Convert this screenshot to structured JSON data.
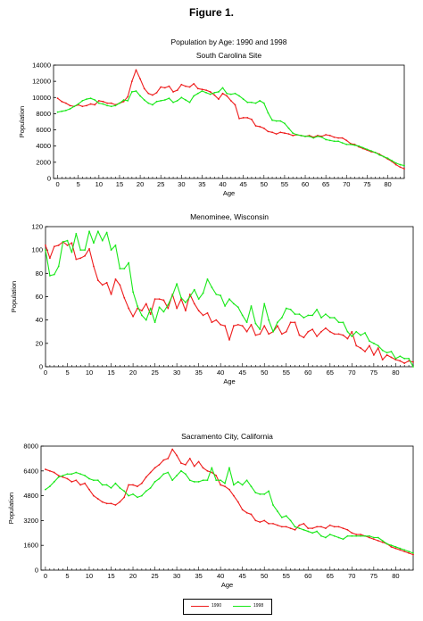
{
  "figure_title": "Figure 1.",
  "colors": {
    "series_1990": "#ee1c1c",
    "series_1998": "#18e818",
    "axis": "#000000"
  },
  "legend": {
    "placement": "bottom-center",
    "labels": [
      "1990",
      "1998"
    ]
  },
  "chart_data": [
    {
      "type": "line",
      "title": "Population by  Age:  1990 and 1998",
      "subtitle": "South Carolina Site",
      "xlabel": "Age",
      "ylabel": "Population",
      "xlim": [
        -1,
        84
      ],
      "ylim": [
        0,
        14000
      ],
      "xticks": [
        0,
        5,
        10,
        15,
        20,
        25,
        30,
        35,
        40,
        45,
        50,
        55,
        60,
        65,
        70,
        75,
        80
      ],
      "yticks": [
        0,
        2000,
        4000,
        6000,
        8000,
        10000,
        12000,
        14000
      ],
      "grid": false,
      "series": [
        {
          "name": "1990",
          "color": "#ee1c1c",
          "values": [
            9900,
            9500,
            9300,
            9000,
            8900,
            9100,
            8900,
            9000,
            9200,
            9100,
            9600,
            9500,
            9300,
            9300,
            9100,
            9300,
            9500,
            10100,
            12000,
            13400,
            12300,
            11100,
            10500,
            10300,
            10600,
            11300,
            11200,
            11400,
            10700,
            10900,
            11600,
            11400,
            11300,
            11700,
            11100,
            11000,
            10900,
            10700,
            10300,
            9800,
            10500,
            10200,
            9600,
            9100,
            7400,
            7500,
            7500,
            7300,
            6500,
            6400,
            6200,
            5800,
            5700,
            5500,
            5700,
            5600,
            5500,
            5300,
            5400,
            5300,
            5200,
            5300,
            5100,
            5300,
            5200,
            5400,
            5300,
            5100,
            5000,
            5000,
            4700,
            4300,
            4200,
            3900,
            3700,
            3500,
            3300,
            3200,
            3000,
            2700,
            2400,
            2100,
            1700,
            1400,
            1200
          ]
        },
        {
          "name": "1998",
          "color": "#18e818",
          "values": [
            8200,
            8300,
            8400,
            8600,
            8900,
            9200,
            9600,
            9800,
            9900,
            9700,
            9300,
            9200,
            9000,
            8900,
            9000,
            9300,
            9700,
            9600,
            10700,
            10800,
            10200,
            9700,
            9300,
            9100,
            9500,
            9600,
            9700,
            9900,
            9400,
            9600,
            10000,
            9700,
            9400,
            10200,
            10500,
            10800,
            10600,
            10400,
            10600,
            10700,
            11200,
            10500,
            10400,
            10500,
            10200,
            9800,
            9400,
            9400,
            9300,
            9600,
            9300,
            8100,
            7200,
            7100,
            7100,
            6800,
            6200,
            5600,
            5400,
            5300,
            5200,
            5200,
            5000,
            5200,
            5100,
            4800,
            4700,
            4600,
            4600,
            4400,
            4200,
            4200,
            4100,
            4000,
            3800,
            3600,
            3400,
            3200,
            2900,
            2700,
            2500,
            2200,
            1900,
            1700,
            1600
          ]
        }
      ]
    },
    {
      "type": "line",
      "title": "Menominee, Wisconsin",
      "xlabel": "Age",
      "ylabel": "Population",
      "xlim": [
        0,
        84
      ],
      "ylim": [
        0,
        120
      ],
      "xticks": [
        0,
        5,
        10,
        15,
        20,
        25,
        30,
        35,
        40,
        45,
        50,
        55,
        60,
        65,
        70,
        75,
        80
      ],
      "yticks": [
        0,
        20,
        40,
        60,
        80,
        100,
        120
      ],
      "grid": false,
      "series": [
        {
          "name": "1990",
          "color": "#ee1c1c",
          "values": [
            104,
            93,
            103,
            104,
            107,
            104,
            106,
            92,
            93,
            95,
            101,
            86,
            74,
            70,
            72,
            62,
            75,
            70,
            59,
            50,
            43,
            50,
            48,
            54,
            45,
            58,
            58,
            57,
            50,
            62,
            50,
            58,
            48,
            62,
            54,
            48,
            44,
            46,
            38,
            40,
            36,
            35,
            23,
            35,
            36,
            35,
            30,
            36,
            27,
            28,
            35,
            28,
            30,
            35,
            28,
            30,
            38,
            38,
            27,
            25,
            30,
            32,
            26,
            30,
            33,
            30,
            28,
            28,
            27,
            24,
            30,
            18,
            16,
            13,
            18,
            10,
            16,
            6,
            10,
            8,
            6,
            5,
            3,
            5,
            4
          ]
        },
        {
          "name": "1998",
          "color": "#18e818",
          "values": [
            100,
            78,
            79,
            86,
            107,
            108,
            98,
            114,
            100,
            100,
            116,
            106,
            116,
            108,
            115,
            100,
            104,
            84,
            84,
            89,
            64,
            52,
            44,
            40,
            50,
            38,
            51,
            47,
            53,
            61,
            71,
            59,
            55,
            60,
            66,
            58,
            63,
            75,
            68,
            62,
            61,
            52,
            58,
            54,
            51,
            44,
            38,
            52,
            37,
            32,
            54,
            40,
            30,
            38,
            42,
            50,
            49,
            45,
            45,
            42,
            44,
            44,
            49,
            42,
            45,
            42,
            42,
            38,
            38,
            30,
            26,
            30,
            27,
            29,
            22,
            20,
            18,
            14,
            12,
            13,
            7,
            9,
            7,
            7,
            0
          ]
        }
      ]
    },
    {
      "type": "line",
      "title": "Sacramento City,  California",
      "xlabel": "Age",
      "ylabel": "Population",
      "xlim": [
        -1,
        84
      ],
      "ylim": [
        0,
        8000
      ],
      "xticks": [
        0,
        5,
        10,
        15,
        20,
        25,
        30,
        35,
        40,
        45,
        50,
        55,
        60,
        65,
        70,
        75,
        80
      ],
      "yticks": [
        0,
        1600,
        3200,
        4800,
        6400,
        8000
      ],
      "grid": false,
      "series": [
        {
          "name": "1990",
          "color": "#ee1c1c",
          "values": [
            6500,
            6400,
            6300,
            6100,
            6000,
            5900,
            5700,
            5800,
            5500,
            5600,
            5200,
            4800,
            4600,
            4400,
            4300,
            4300,
            4200,
            4400,
            4700,
            5500,
            5500,
            5400,
            5600,
            6000,
            6300,
            6600,
            6800,
            7100,
            7200,
            7800,
            7400,
            6900,
            6800,
            7200,
            6700,
            7000,
            6600,
            6400,
            6300,
            6100,
            5500,
            5400,
            5200,
            4800,
            4400,
            3900,
            3700,
            3600,
            3200,
            3100,
            3200,
            3000,
            3000,
            2900,
            2800,
            2800,
            2700,
            2600,
            2900,
            3000,
            2700,
            2700,
            2800,
            2800,
            2700,
            2900,
            2800,
            2800,
            2700,
            2600,
            2400,
            2300,
            2300,
            2200,
            2100,
            2000,
            1900,
            1800,
            1700,
            1500,
            1400,
            1300,
            1200,
            1100,
            1000
          ]
        },
        {
          "name": "1998",
          "color": "#18e818",
          "values": [
            5200,
            5400,
            5700,
            6000,
            6100,
            6200,
            6200,
            6300,
            6200,
            6100,
            5900,
            5800,
            5800,
            5500,
            5500,
            5300,
            5600,
            5300,
            5100,
            4800,
            4900,
            4700,
            4800,
            5100,
            5300,
            5700,
            5900,
            6200,
            6300,
            5800,
            6100,
            6400,
            6200,
            5800,
            5700,
            5700,
            5800,
            5800,
            6600,
            5800,
            5800,
            5600,
            6600,
            5500,
            5700,
            5500,
            5800,
            5400,
            5000,
            4900,
            4900,
            5100,
            4200,
            3800,
            3400,
            3500,
            3200,
            2800,
            2700,
            2600,
            2500,
            2400,
            2500,
            2200,
            2100,
            2300,
            2200,
            2100,
            2000,
            2200,
            2200,
            2200,
            2200,
            2200,
            2200,
            2100,
            2100,
            1900,
            1700,
            1600,
            1500,
            1400,
            1300,
            1200,
            1100
          ]
        }
      ]
    }
  ]
}
